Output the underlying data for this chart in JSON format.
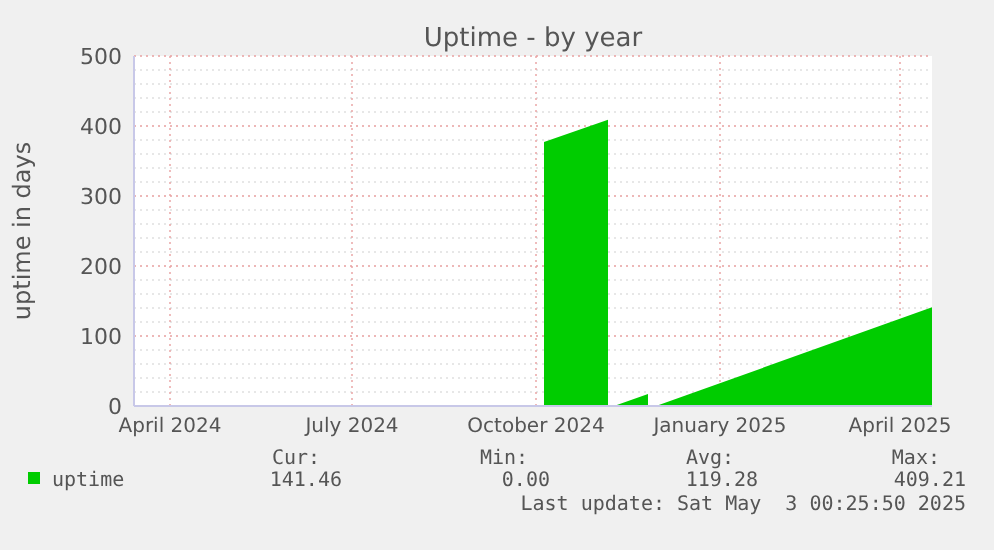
{
  "chart_data": {
    "type": "area",
    "title": "Uptime - by year",
    "ylabel": "uptime in days",
    "x": [
      "2024-10-19",
      "2024-11-20",
      "2024-11-21",
      "2024-11-23",
      "2024-12-10",
      "2024-12-11",
      "2024-12-14",
      "2025-05-01"
    ],
    "series": [
      {
        "name": "uptime",
        "color": "#00cc00",
        "values": [
          377,
          409,
          null,
          0,
          17,
          null,
          0,
          141
        ]
      }
    ],
    "xlim": [
      "2024-03-28",
      "2025-05-01"
    ],
    "xticks": [
      {
        "value": "2024-04-15",
        "label": "April 2024"
      },
      {
        "value": "2024-07-15",
        "label": "July 2024"
      },
      {
        "value": "2024-10-15",
        "label": "October 2024"
      },
      {
        "value": "2025-01-15",
        "label": "January 2025"
      },
      {
        "value": "2025-04-15",
        "label": "April 2025"
      }
    ],
    "ylim": [
      0,
      500
    ],
    "yticks": [
      0,
      100,
      200,
      300,
      400,
      500
    ],
    "grid": true,
    "legend": "bottom left",
    "annotations": [
      "Cur:",
      "Min:",
      "Avg:",
      "Max:",
      "141.46",
      "0.00",
      "119.28",
      "409.21",
      "Last update: Sat May  3 00:25:50 2025"
    ]
  }
}
